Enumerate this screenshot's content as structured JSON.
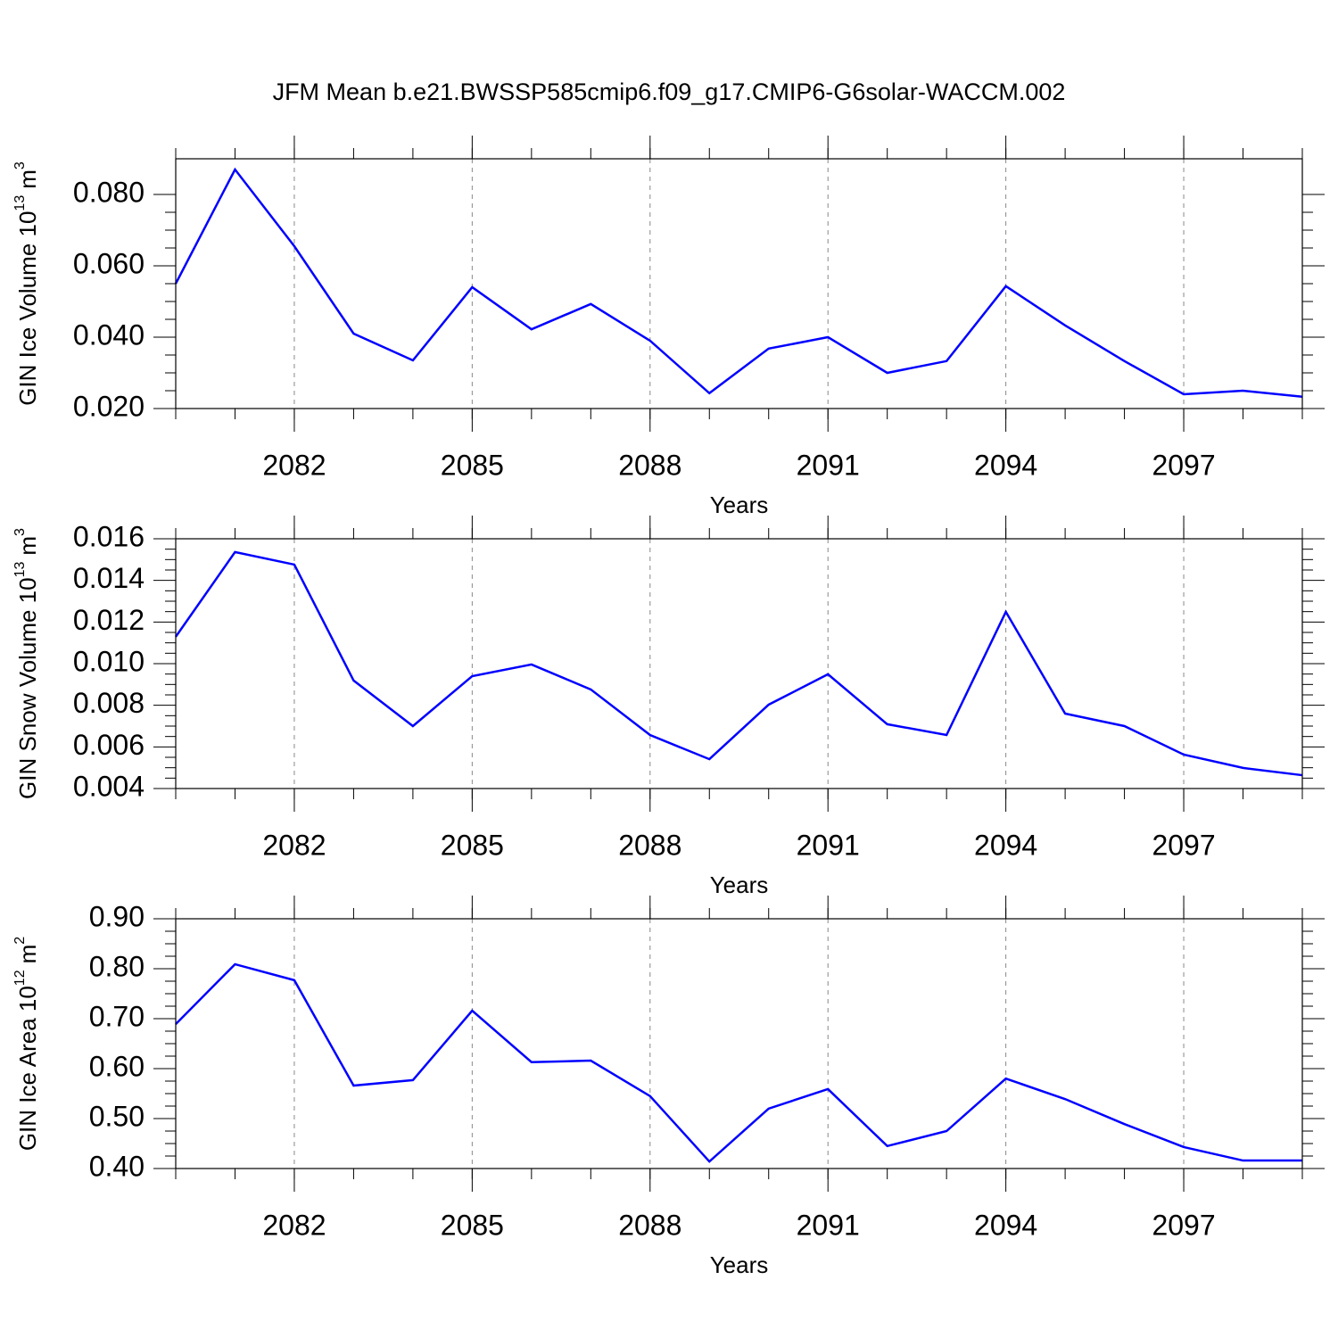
{
  "title": "JFM Mean b.e21.BWSSP585cmip6.f09_g17.CMIP6-G6solar-WACCM.002",
  "chart_data": [
    {
      "type": "line",
      "color": "#0000ff",
      "grid": true,
      "xlabel": "Years",
      "ylabel": {
        "text": "GIN Ice Volume 10",
        "power": "13",
        "unit": "m",
        "unit_power": "3"
      },
      "x": [
        2080,
        2081,
        2082,
        2083,
        2084,
        2085,
        2086,
        2087,
        2088,
        2089,
        2090,
        2091,
        2092,
        2093,
        2094,
        2095,
        2096,
        2097,
        2098,
        2099
      ],
      "values": [
        0.055,
        0.087,
        0.0655,
        0.041,
        0.0335,
        0.054,
        0.0422,
        0.0493,
        0.039,
        0.0243,
        0.0368,
        0.04,
        0.03,
        0.0333,
        0.0543,
        0.0433,
        0.0333,
        0.024,
        0.025,
        0.0233
      ],
      "xlim": [
        2080,
        2099
      ],
      "xticks": [
        2082,
        2085,
        2088,
        2091,
        2094,
        2097
      ],
      "ylim": [
        0.02,
        0.09
      ],
      "yticks": [
        {
          "value": 0.02,
          "label": "0.020"
        },
        {
          "value": 0.04,
          "label": "0.040"
        },
        {
          "value": 0.06,
          "label": "0.060"
        },
        {
          "value": 0.08,
          "label": "0.080"
        }
      ]
    },
    {
      "type": "line",
      "color": "#0000ff",
      "grid": true,
      "xlabel": "Years",
      "ylabel": {
        "text": "GIN Snow Volume 10",
        "power": "13",
        "unit": "m",
        "unit_power": "3"
      },
      "x": [
        2080,
        2081,
        2082,
        2083,
        2084,
        2085,
        2086,
        2087,
        2088,
        2089,
        2090,
        2091,
        2092,
        2093,
        2094,
        2095,
        2096,
        2097,
        2098,
        2099
      ],
      "values": [
        0.01129,
        0.01536,
        0.01476,
        0.00919,
        0.007,
        0.0094,
        0.00996,
        0.00876,
        0.00657,
        0.00541,
        0.00803,
        0.00949,
        0.00709,
        0.00657,
        0.01249,
        0.0076,
        0.007,
        0.00563,
        0.00499,
        0.00464
      ],
      "xlim": [
        2080,
        2099
      ],
      "xticks": [
        2082,
        2085,
        2088,
        2091,
        2094,
        2097
      ],
      "ylim": [
        0.004,
        0.016
      ],
      "yticks": [
        {
          "value": 0.004,
          "label": "0.004"
        },
        {
          "value": 0.006,
          "label": "0.006"
        },
        {
          "value": 0.008,
          "label": "0.008"
        },
        {
          "value": 0.01,
          "label": "0.010"
        },
        {
          "value": 0.012,
          "label": "0.012"
        },
        {
          "value": 0.014,
          "label": "0.014"
        },
        {
          "value": 0.016,
          "label": "0.016"
        }
      ]
    },
    {
      "type": "line",
      "color": "#0000ff",
      "grid": true,
      "xlabel": "Years",
      "ylabel": {
        "text": "GIN Ice Area 10",
        "power": "12",
        "unit": "m",
        "unit_power": "2"
      },
      "x": [
        2080,
        2081,
        2082,
        2083,
        2084,
        2085,
        2086,
        2087,
        2088,
        2089,
        2090,
        2091,
        2092,
        2093,
        2094,
        2095,
        2096,
        2097,
        2098,
        2099
      ],
      "values": [
        0.689,
        0.809,
        0.777,
        0.566,
        0.577,
        0.716,
        0.613,
        0.616,
        0.545,
        0.414,
        0.52,
        0.559,
        0.445,
        0.475,
        0.58,
        0.539,
        0.489,
        0.443,
        0.416,
        0.416
      ],
      "xlim": [
        2080,
        2099
      ],
      "xticks": [
        2082,
        2085,
        2088,
        2091,
        2094,
        2097
      ],
      "ylim": [
        0.4,
        0.9
      ],
      "yticks": [
        {
          "value": 0.4,
          "label": "0.40"
        },
        {
          "value": 0.5,
          "label": "0.50"
        },
        {
          "value": 0.6,
          "label": "0.60"
        },
        {
          "value": 0.7,
          "label": "0.70"
        },
        {
          "value": 0.8,
          "label": "0.80"
        },
        {
          "value": 0.9,
          "label": "0.90"
        }
      ]
    }
  ]
}
